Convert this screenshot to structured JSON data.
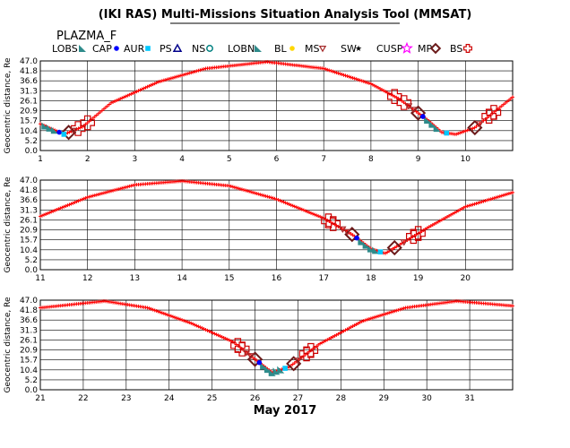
{
  "title": "(IKI RAS) Multi-Missions Situation Analysis Tool (MMSAT)",
  "mission": "PLAZMA_F",
  "legend": [
    {
      "label": "LOBS",
      "icon": "triangle-tile-icon",
      "color": "#2e8b8b"
    },
    {
      "label": "CAP",
      "icon": "dot-icon",
      "color": "#0000ff"
    },
    {
      "label": "AUR",
      "icon": "square-icon",
      "color": "#00c8ff"
    },
    {
      "label": "PS",
      "icon": "triangle-outline-icon",
      "color": "#00008b"
    },
    {
      "label": "NS",
      "icon": "circle-outline-icon",
      "color": "#008080"
    },
    {
      "label": "LOBN",
      "icon": "triangle-tile-icon",
      "color": "#2e8b8b"
    },
    {
      "label": "BL",
      "icon": "dot-icon",
      "color": "#ffd700"
    },
    {
      "label": "MS",
      "icon": "triangle-down-icon",
      "color": "#a52a2a"
    },
    {
      "label": "SW",
      "icon": "star-icon",
      "color": "#ff0000"
    },
    {
      "label": "CUSP",
      "icon": "star-outline-icon",
      "color": "#ff00ff"
    },
    {
      "label": "MP",
      "icon": "diamond-icon",
      "color": "#6b1a1a"
    },
    {
      "label": "BS",
      "icon": "cross-outline-icon",
      "color": "#cc0000"
    }
  ],
  "month_label": "May 2017",
  "chart_data": [
    {
      "type": "line",
      "ylabel": "Geocentric distance, Re",
      "xlim": [
        1,
        11
      ],
      "ylim": [
        0.0,
        47.0
      ],
      "yticks": [
        "0.0",
        "5.2",
        "10.4",
        "15.7",
        "20.9",
        "26.1",
        "31.3",
        "36.6",
        "41.8",
        "47.0"
      ],
      "xticks": [
        "1",
        "2",
        "3",
        "4",
        "5",
        "6",
        "7",
        "8",
        "9",
        "10"
      ],
      "grid": true,
      "series": [
        {
          "orbit_points": [
            [
              1.0,
              14.0
            ],
            [
              1.5,
              8.5
            ],
            [
              1.9,
              12.5
            ],
            [
              2.5,
              25.0
            ],
            [
              3.5,
              36.0
            ],
            [
              4.5,
              43.0
            ],
            [
              5.8,
              46.5
            ],
            [
              7.0,
              43.0
            ],
            [
              8.0,
              35.0
            ],
            [
              8.6,
              27.0
            ],
            [
              9.2,
              16.0
            ],
            [
              9.5,
              9.5
            ],
            [
              9.8,
              8.5
            ],
            [
              10.2,
              12.0
            ],
            [
              10.6,
              20.0
            ],
            [
              11.0,
              28.0
            ]
          ]
        }
      ],
      "region_markers": [
        {
          "region": "BS",
          "x": [
            1.8,
            2.0,
            8.5,
            8.7,
            10.5,
            10.6
          ]
        },
        {
          "region": "MP",
          "x": [
            1.6,
            9.0,
            10.2
          ]
        },
        {
          "region": "MS",
          "x": [
            1.7,
            8.8,
            8.9,
            10.3
          ]
        },
        {
          "region": "LOBS",
          "x": [
            1.1,
            1.2,
            1.3,
            9.2,
            9.3,
            9.4
          ]
        },
        {
          "region": "CAP",
          "x": [
            1.4,
            9.1
          ]
        },
        {
          "region": "AUR",
          "x": [
            1.5,
            9.6
          ]
        }
      ]
    },
    {
      "type": "line",
      "ylabel": "Geocentric distance, Re",
      "xlim": [
        11,
        21
      ],
      "ylim": [
        0.0,
        47.0
      ],
      "yticks": [
        "0.0",
        "5.2",
        "10.4",
        "15.7",
        "20.9",
        "26.1",
        "31.3",
        "36.6",
        "41.8",
        "47.0"
      ],
      "xticks": [
        "11",
        "12",
        "13",
        "14",
        "15",
        "16",
        "17",
        "18",
        "19",
        "20"
      ],
      "grid": true,
      "series": [
        {
          "orbit_points": [
            [
              11.0,
              28.0
            ],
            [
              12.0,
              38.0
            ],
            [
              13.0,
              44.5
            ],
            [
              14.0,
              46.5
            ],
            [
              15.0,
              44.0
            ],
            [
              16.0,
              37.0
            ],
            [
              17.0,
              27.0
            ],
            [
              17.6,
              18.5
            ],
            [
              18.0,
              11.0
            ],
            [
              18.3,
              8.5
            ],
            [
              18.6,
              13.0
            ],
            [
              19.2,
              22.0
            ],
            [
              20.0,
              33.0
            ],
            [
              21.0,
              40.5
            ]
          ]
        }
      ],
      "region_markers": [
        {
          "region": "BS",
          "x": [
            17.1,
            17.2,
            18.9,
            19.0
          ]
        },
        {
          "region": "MP",
          "x": [
            17.6,
            18.5
          ]
        },
        {
          "region": "MS",
          "x": [
            17.4,
            17.5,
            18.7
          ]
        },
        {
          "region": "LOBS",
          "x": [
            17.8,
            17.9,
            18.0,
            18.1
          ]
        },
        {
          "region": "CAP",
          "x": [
            17.7
          ]
        },
        {
          "region": "AUR",
          "x": [
            18.2
          ]
        }
      ]
    },
    {
      "type": "line",
      "ylabel": "Geocentric distance, Re",
      "xlim": [
        21,
        32
      ],
      "ylim": [
        0.0,
        47.0
      ],
      "yticks": [
        "0.0",
        "5.2",
        "10.4",
        "15.7",
        "20.9",
        "26.1",
        "31.3",
        "36.6",
        "41.8",
        "47.0"
      ],
      "xticks": [
        "21",
        "22",
        "23",
        "24",
        "25",
        "26",
        "27",
        "28",
        "29",
        "30",
        "31"
      ],
      "grid": true,
      "series": [
        {
          "orbit_points": [
            [
              21.0,
              43.0
            ],
            [
              22.5,
              46.5
            ],
            [
              23.5,
              43.0
            ],
            [
              24.5,
              35.0
            ],
            [
              25.5,
              25.0
            ],
            [
              26.0,
              16.0
            ],
            [
              26.4,
              9.0
            ],
            [
              26.8,
              12.0
            ],
            [
              27.5,
              24.0
            ],
            [
              28.5,
              36.0
            ],
            [
              29.5,
              43.0
            ],
            [
              30.7,
              46.5
            ],
            [
              32.0,
              44.0
            ]
          ]
        }
      ],
      "region_markers": [
        {
          "region": "BS",
          "x": [
            25.6,
            25.7,
            27.2,
            27.3
          ]
        },
        {
          "region": "MP",
          "x": [
            26.0,
            26.9
          ]
        },
        {
          "region": "MS",
          "x": [
            25.8,
            25.9,
            27.0
          ]
        },
        {
          "region": "LOBS",
          "x": [
            26.2,
            26.3,
            26.4,
            26.5,
            26.6
          ]
        },
        {
          "region": "CAP",
          "x": [
            26.1
          ]
        },
        {
          "region": "AUR",
          "x": [
            26.7
          ]
        }
      ]
    }
  ]
}
